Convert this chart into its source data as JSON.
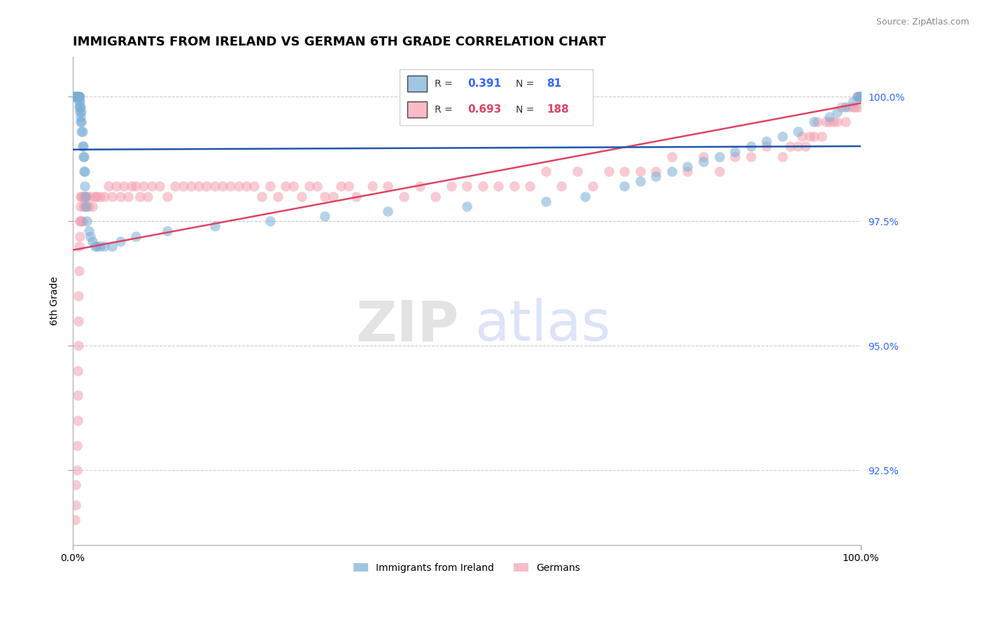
{
  "title": "IMMIGRANTS FROM IRELAND VS GERMAN 6TH GRADE CORRELATION CHART",
  "source_text": "Source: ZipAtlas.com",
  "ylabel": "6th Grade",
  "legend_labels": [
    "Immigrants from Ireland",
    "Germans"
  ],
  "blue_R": 0.391,
  "blue_N": 81,
  "pink_R": 0.693,
  "pink_N": 188,
  "blue_color": "#7aaed6",
  "pink_color": "#f4a0b0",
  "blue_line_color": "#2255aa",
  "pink_line_color": "#dd4466",
  "bg_color": "#FFFFFF",
  "grid_color": "#cccccc",
  "xmin": 0.0,
  "xmax": 1.0,
  "ymin": 91.0,
  "ymax": 100.8,
  "yticks": [
    92.5,
    95.0,
    97.5,
    100.0
  ],
  "ytick_labels": [
    "92.5%",
    "95.0%",
    "97.5%",
    "100.0%"
  ],
  "xtick_labels": [
    "0.0%",
    "100.0%"
  ],
  "title_fontsize": 13,
  "label_fontsize": 10,
  "tick_fontsize": 10,
  "right_tick_color": "#3366ff",
  "watermark_zip": "ZIP",
  "watermark_atlas": "atlas",
  "blue_scatter_x": [
    0.002,
    0.003,
    0.003,
    0.004,
    0.004,
    0.004,
    0.005,
    0.005,
    0.005,
    0.005,
    0.006,
    0.006,
    0.006,
    0.006,
    0.007,
    0.007,
    0.007,
    0.007,
    0.007,
    0.008,
    0.008,
    0.008,
    0.009,
    0.009,
    0.009,
    0.009,
    0.01,
    0.01,
    0.01,
    0.011,
    0.011,
    0.011,
    0.012,
    0.012,
    0.013,
    0.013,
    0.014,
    0.014,
    0.015,
    0.015,
    0.016,
    0.017,
    0.018,
    0.02,
    0.022,
    0.025,
    0.028,
    0.03,
    0.035,
    0.04,
    0.05,
    0.06,
    0.08,
    0.12,
    0.18,
    0.25,
    0.32,
    0.4,
    0.5,
    0.6,
    0.65,
    0.7,
    0.72,
    0.74,
    0.76,
    0.78,
    0.8,
    0.82,
    0.84,
    0.86,
    0.88,
    0.9,
    0.92,
    0.94,
    0.96,
    0.97,
    0.98,
    0.99,
    0.995,
    0.998,
    1.0
  ],
  "blue_scatter_y": [
    100.0,
    100.0,
    100.0,
    100.0,
    100.0,
    100.0,
    100.0,
    100.0,
    100.0,
    100.0,
    100.0,
    100.0,
    100.0,
    100.0,
    100.0,
    100.0,
    100.0,
    100.0,
    100.0,
    99.8,
    99.9,
    100.0,
    99.7,
    99.8,
    99.9,
    100.0,
    99.5,
    99.6,
    99.8,
    99.3,
    99.5,
    99.7,
    99.0,
    99.3,
    98.8,
    99.0,
    98.5,
    98.8,
    98.2,
    98.5,
    98.0,
    97.8,
    97.5,
    97.3,
    97.2,
    97.1,
    97.0,
    97.0,
    97.0,
    97.0,
    97.0,
    97.1,
    97.2,
    97.3,
    97.4,
    97.5,
    97.6,
    97.7,
    97.8,
    97.9,
    98.0,
    98.2,
    98.3,
    98.4,
    98.5,
    98.6,
    98.7,
    98.8,
    98.9,
    99.0,
    99.1,
    99.2,
    99.3,
    99.5,
    99.6,
    99.7,
    99.8,
    99.9,
    100.0,
    100.0,
    100.0
  ],
  "pink_scatter_x": [
    0.003,
    0.004,
    0.004,
    0.005,
    0.005,
    0.006,
    0.006,
    0.006,
    0.007,
    0.007,
    0.007,
    0.008,
    0.008,
    0.009,
    0.009,
    0.01,
    0.01,
    0.01,
    0.011,
    0.011,
    0.012,
    0.012,
    0.013,
    0.014,
    0.015,
    0.016,
    0.017,
    0.018,
    0.02,
    0.022,
    0.025,
    0.028,
    0.03,
    0.035,
    0.04,
    0.045,
    0.05,
    0.055,
    0.06,
    0.065,
    0.07,
    0.075,
    0.08,
    0.085,
    0.09,
    0.095,
    0.1,
    0.11,
    0.12,
    0.13,
    0.14,
    0.15,
    0.16,
    0.17,
    0.18,
    0.19,
    0.2,
    0.21,
    0.22,
    0.23,
    0.24,
    0.25,
    0.26,
    0.27,
    0.28,
    0.29,
    0.3,
    0.31,
    0.32,
    0.33,
    0.34,
    0.35,
    0.36,
    0.38,
    0.4,
    0.42,
    0.44,
    0.46,
    0.48,
    0.5,
    0.52,
    0.54,
    0.56,
    0.58,
    0.6,
    0.62,
    0.64,
    0.66,
    0.68,
    0.7,
    0.72,
    0.74,
    0.76,
    0.78,
    0.8,
    0.82,
    0.84,
    0.86,
    0.88,
    0.9,
    0.91,
    0.92,
    0.925,
    0.93,
    0.935,
    0.94,
    0.945,
    0.95,
    0.955,
    0.96,
    0.965,
    0.97,
    0.975,
    0.98,
    0.985,
    0.99,
    0.993,
    0.995,
    0.997,
    0.998,
    0.999,
    0.999,
    0.999,
    1.0,
    1.0,
    1.0,
    1.0,
    1.0,
    1.0,
    1.0,
    1.0,
    1.0,
    1.0,
    1.0,
    1.0,
    1.0,
    1.0,
    1.0,
    1.0,
    1.0,
    1.0,
    1.0,
    1.0,
    1.0,
    1.0,
    1.0,
    1.0,
    1.0,
    1.0,
    1.0,
    1.0,
    1.0,
    1.0,
    1.0,
    1.0,
    1.0,
    1.0,
    1.0,
    1.0,
    1.0,
    1.0,
    1.0,
    1.0,
    1.0,
    1.0,
    1.0,
    1.0,
    1.0,
    1.0,
    1.0,
    1.0,
    1.0,
    1.0,
    1.0,
    1.0,
    1.0,
    1.0,
    1.0,
    1.0,
    1.0,
    1.0,
    1.0,
    1.0,
    1.0,
    1.0,
    1.0,
    1.0,
    1.0,
    1.0,
    1.0
  ],
  "pink_scatter_y": [
    91.5,
    91.8,
    92.2,
    92.5,
    93.0,
    93.5,
    94.0,
    94.5,
    95.0,
    95.5,
    96.0,
    96.5,
    97.0,
    97.2,
    97.5,
    97.5,
    97.8,
    98.0,
    97.5,
    98.0,
    97.5,
    98.0,
    97.8,
    98.0,
    97.8,
    98.0,
    97.8,
    98.0,
    97.8,
    98.0,
    97.8,
    98.0,
    98.0,
    98.0,
    98.0,
    98.2,
    98.0,
    98.2,
    98.0,
    98.2,
    98.0,
    98.2,
    98.2,
    98.0,
    98.2,
    98.0,
    98.2,
    98.2,
    98.0,
    98.2,
    98.2,
    98.2,
    98.2,
    98.2,
    98.2,
    98.2,
    98.2,
    98.2,
    98.2,
    98.2,
    98.0,
    98.2,
    98.0,
    98.2,
    98.2,
    98.0,
    98.2,
    98.2,
    98.0,
    98.0,
    98.2,
    98.2,
    98.0,
    98.2,
    98.2,
    98.0,
    98.2,
    98.0,
    98.2,
    98.2,
    98.2,
    98.2,
    98.2,
    98.2,
    98.5,
    98.2,
    98.5,
    98.2,
    98.5,
    98.5,
    98.5,
    98.5,
    98.8,
    98.5,
    98.8,
    98.5,
    98.8,
    98.8,
    99.0,
    98.8,
    99.0,
    99.0,
    99.2,
    99.0,
    99.2,
    99.2,
    99.5,
    99.2,
    99.5,
    99.5,
    99.5,
    99.5,
    99.8,
    99.5,
    99.8,
    99.8,
    99.8,
    100.0,
    99.8,
    100.0,
    100.0,
    100.0,
    100.0,
    100.0,
    100.0,
    100.0,
    100.0,
    100.0,
    100.0,
    100.0,
    100.0,
    100.0,
    100.0,
    100.0,
    100.0,
    100.0,
    100.0,
    100.0,
    100.0,
    100.0,
    100.0,
    100.0,
    100.0,
    100.0,
    100.0,
    100.0,
    100.0,
    100.0,
    100.0,
    100.0,
    100.0,
    100.0,
    100.0,
    100.0,
    100.0,
    100.0,
    100.0,
    100.0,
    100.0,
    100.0,
    100.0,
    100.0,
    100.0,
    100.0,
    100.0,
    100.0,
    100.0,
    100.0,
    100.0,
    100.0,
    100.0,
    100.0,
    100.0,
    100.0,
    100.0,
    100.0,
    100.0,
    100.0,
    100.0,
    100.0,
    100.0,
    100.0,
    100.0,
    100.0,
    100.0,
    100.0,
    100.0,
    100.0,
    100.0,
    100.0
  ]
}
